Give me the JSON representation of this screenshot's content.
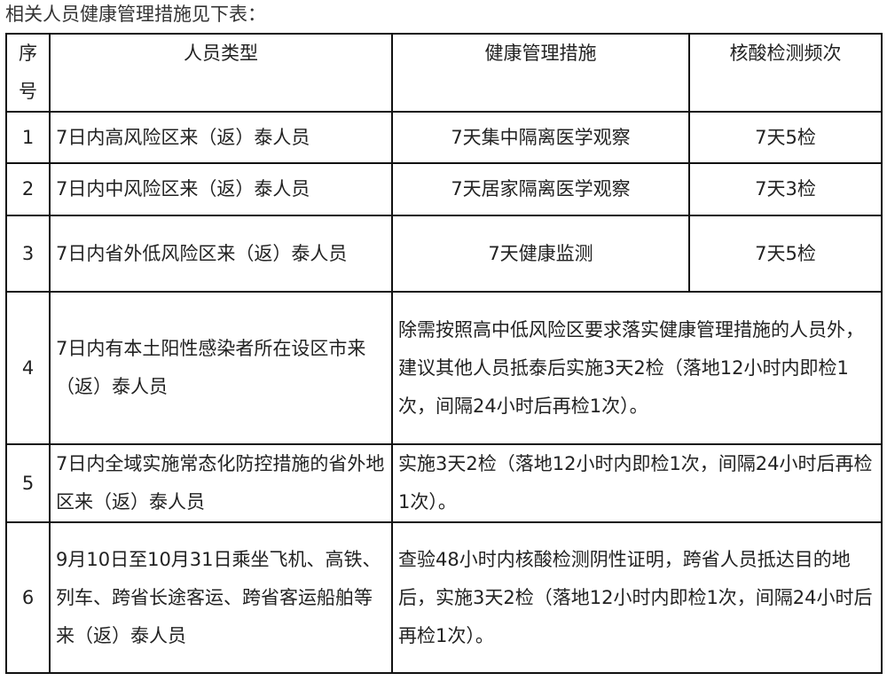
{
  "intro": "相关人员健康管理措施见下表：",
  "table": {
    "headers": [
      "序号",
      "人员类型",
      "健康管理措施",
      "核酸检测频次"
    ],
    "rows": [
      {
        "no": "1",
        "type": "7日内高风险区来（返）泰人员",
        "measure": "7天集中隔离医学观察",
        "frequency": "7天5检"
      },
      {
        "no": "2",
        "type": "7日内中风险区来（返）泰人员",
        "measure": "7天居家隔离医学观察",
        "frequency": "7天3检"
      },
      {
        "no": "3",
        "type": "7日内省外低风险区来（返）泰人员",
        "measure": "7天健康监测",
        "frequency": "7天5检"
      },
      {
        "no": "4",
        "type": "7日内有本土阳性感染者所在设区市来（返）泰人员",
        "merged": "除需按照高中低风险区要求落实健康管理措施的人员外，建议其他人员抵泰后实施3天2检（落地12小时内即检1次，间隔24小时后再检1次）。"
      },
      {
        "no": "5",
        "type": "7日内全域实施常态化防控措施的省外地区来（返）泰人员",
        "merged": "实施3天2检（落地12小时内即检1次，间隔24小时后再检1次）。"
      },
      {
        "no": "6",
        "type": "9月10日至10月31日乘坐飞机、高铁、列车、跨省长途客运、跨省客运船舶等来（返）泰人员",
        "merged": "查验48小时内核酸检测阴性证明，跨省人员抵达目的地后，实施3天2检（落地12小时内即检1次，间隔24小时后再检1次）。"
      }
    ]
  }
}
